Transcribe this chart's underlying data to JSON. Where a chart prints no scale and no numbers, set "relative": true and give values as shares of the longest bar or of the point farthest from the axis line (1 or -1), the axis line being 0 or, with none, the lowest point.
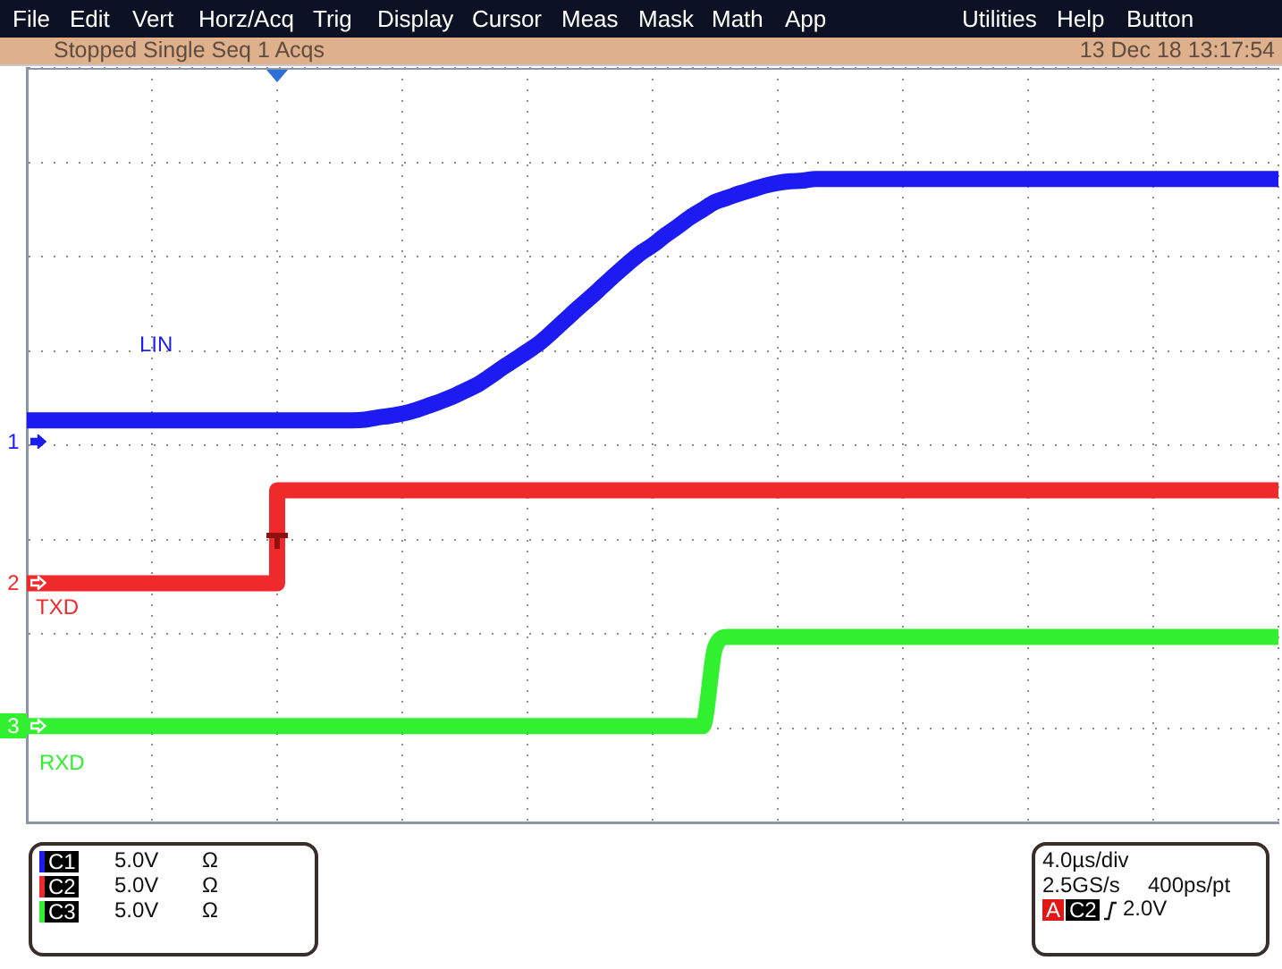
{
  "chart_data": {
    "type": "line",
    "relative": true,
    "grid": true,
    "categories": [
      null,
      null,
      null,
      null,
      null,
      null,
      null,
      null,
      null,
      null,
      null,
      null,
      null,
      null,
      null,
      null,
      null,
      null,
      null,
      null,
      null,
      null,
      null,
      null,
      null,
      null,
      null,
      null,
      null,
      null,
      null,
      null,
      null,
      null,
      null,
      null,
      null,
      null,
      null,
      null,
      null,
      null,
      null,
      null,
      null,
      null,
      null,
      null,
      null,
      null,
      null,
      null,
      null,
      null,
      null,
      null,
      null,
      null,
      null,
      null,
      null,
      null,
      null,
      null,
      null,
      null,
      null,
      null,
      null,
      null,
      null,
      null,
      null,
      null,
      null,
      null,
      null,
      null,
      null,
      null,
      null,
      null,
      null,
      null,
      null,
      null,
      null,
      null,
      null,
      null,
      null,
      null,
      null,
      null,
      null,
      null,
      null,
      null,
      null,
      null,
      null
    ],
    "series": [
      {
        "name": "LIN",
        "color": "#1c1cf2",
        "values": [
          0.559,
          0.559,
          0.559,
          0.559,
          0.559,
          0.559,
          0.559,
          0.559,
          0.559,
          0.559,
          0.559,
          0.559,
          0.559,
          0.559,
          0.559,
          0.559,
          0.559,
          0.559,
          0.559,
          0.559,
          0.559,
          0.559,
          0.559,
          0.559,
          0.559,
          0.559,
          0.559,
          0.56,
          0.564,
          0.567,
          0.571,
          0.577,
          0.585,
          0.593,
          0.602,
          0.613,
          0.624,
          0.639,
          0.655,
          0.67,
          0.685,
          0.701,
          0.721,
          0.742,
          0.763,
          0.783,
          0.804,
          0.825,
          0.845,
          0.864,
          0.879,
          0.897,
          0.913,
          0.93,
          0.944,
          0.958,
          0.966,
          0.974,
          0.981,
          0.988,
          0.993,
          0.996,
          0.997,
          1,
          1,
          1,
          1,
          1,
          1,
          1,
          1,
          1,
          1,
          1,
          1,
          1,
          1,
          1,
          1,
          1,
          1,
          1,
          1,
          1,
          1,
          1,
          1,
          1,
          1,
          1,
          1,
          1,
          1,
          1,
          1,
          1,
          1,
          1,
          1,
          1,
          1
        ]
      },
      {
        "name": "TXD",
        "type": "step",
        "color": "#f02a2a",
        "values": [
          0.261,
          0.261,
          0.261,
          0.261,
          0.261,
          0.261,
          0.261,
          0.261,
          0.261,
          0.261,
          0.261,
          0.261,
          0.261,
          0.261,
          0.261,
          0.261,
          0.261,
          0.261,
          0.261,
          0.261,
          0.431,
          0.431,
          0.431,
          0.431,
          0.431,
          0.431,
          0.431,
          0.431,
          0.431,
          0.431,
          0.431,
          0.431,
          0.431,
          0.431,
          0.431,
          0.431,
          0.431,
          0.431,
          0.431,
          0.431,
          0.431,
          0.431,
          0.431,
          0.431,
          0.431,
          0.431,
          0.431,
          0.431,
          0.431,
          0.431,
          0.431,
          0.431,
          0.431,
          0.431,
          0.431,
          0.431,
          0.431,
          0.431,
          0.431,
          0.431,
          0.431,
          0.431,
          0.431,
          0.431,
          0.431,
          0.431,
          0.431,
          0.431,
          0.431,
          0.431,
          0.431,
          0.431,
          0.431,
          0.431,
          0.431,
          0.431,
          0.431,
          0.431,
          0.431,
          0.431,
          0.431,
          0.431,
          0.431,
          0.431,
          0.431,
          0.431,
          0.431,
          0.431,
          0.431,
          0.431,
          0.431,
          0.431,
          0.431,
          0.431,
          0.431,
          0.431,
          0.431,
          0.431,
          0.431,
          0.431,
          0.431
        ]
      },
      {
        "name": "RXD",
        "color": "#30f030",
        "values": [
          0,
          0,
          0,
          0,
          0,
          0,
          0,
          0,
          0,
          0,
          0,
          0,
          0,
          0,
          0,
          0,
          0,
          0,
          0,
          0,
          0,
          0,
          0,
          0,
          0,
          0,
          0,
          0,
          0,
          0,
          0,
          0,
          0,
          0,
          0,
          0,
          0,
          0,
          0,
          0,
          0,
          0,
          0,
          0,
          0,
          0,
          0,
          0,
          0,
          0,
          0,
          0,
          0,
          0,
          0,
          0.144,
          0.163,
          0.163,
          0.163,
          0.163,
          0.163,
          0.163,
          0.163,
          0.163,
          0.163,
          0.163,
          0.163,
          0.163,
          0.163,
          0.163,
          0.163,
          0.163,
          0.163,
          0.163,
          0.163,
          0.163,
          0.163,
          0.163,
          0.163,
          0.163,
          0.163,
          0.163,
          0.163,
          0.163,
          0.163,
          0.163,
          0.163,
          0.163,
          0.163,
          0.163,
          0.163,
          0.163,
          0.163,
          0.163,
          0.163,
          0.163,
          0.163,
          0.163,
          0.163,
          0.163,
          0.163
        ]
      }
    ],
    "annotations": [
      "File",
      "Edit",
      "Vert",
      "Horz/Acq",
      "Trig",
      "Display",
      "Cursor",
      "Meas",
      "Mask",
      "Math",
      "App",
      "Utilities",
      "Help",
      "Button",
      "Stopped Single Seq 1 Acqs",
      "13 Dec 18 13:17:54",
      "1",
      "2",
      "3",
      "C1",
      "5.0V",
      "Ω",
      "C2",
      "5.0V",
      "Ω",
      "C3",
      "5.0V",
      "Ω",
      "4.0µs/div",
      "2.5GS/s",
      "400ps/pt",
      "A",
      "C2",
      "2.0V"
    ]
  }
}
